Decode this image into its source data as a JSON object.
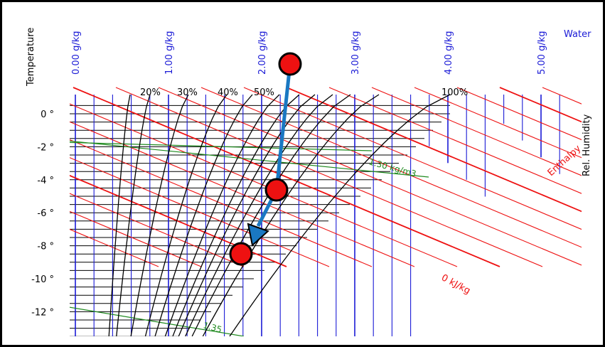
{
  "labels": {
    "temperature": "Temperature",
    "water": "Water",
    "rel_humidity": "Rel. Humidity",
    "enthalpy": "Enthalpy",
    "enthalpy_value": "0 kJ/kg",
    "density_1": "1.30 kg/m3",
    "density_2": "1.35"
  },
  "colors": {
    "temperature_lines": "#000000",
    "water_lines": "#1a1ad6",
    "enthalpy_lines": "#ee1111",
    "density_lines": "#1f8a1f",
    "rh_curves": "#000000",
    "process_arrow": "#1a78c2",
    "markers": "#ee1111"
  },
  "chart_data": {
    "type": "psychrometric",
    "y_axis": {
      "title": "Temperature",
      "ticks": [
        "0 °",
        "-2 °",
        "-4 °",
        "-6 °",
        "-8 °",
        "-10 °",
        "-12 °"
      ],
      "tick_values": [
        0,
        -2,
        -4,
        -6,
        -8,
        -10,
        -12
      ],
      "unit": "°C"
    },
    "x_axis": {
      "title": "Water",
      "ticks": [
        "0.00 g/kg",
        "1.00 g/kg",
        "2.00 g/kg",
        "3.00 g/kg",
        "4.00 g/kg",
        "5.00 g/kg"
      ],
      "tick_values": [
        0,
        1,
        2,
        3,
        4,
        5
      ],
      "unit": "g/kg"
    },
    "rh_curves": {
      "title": "Rel. Humidity",
      "labels": [
        "20%",
        "30%",
        "40%",
        "50%",
        "100%"
      ]
    },
    "enthalpy": {
      "title": "Enthalpy",
      "label": "0 kJ/kg",
      "value": 0
    },
    "density_lines": [
      {
        "label": "1.30 kg/m3",
        "value": 1.3
      },
      {
        "label": "1.35",
        "value": 1.35
      }
    ],
    "process_points": [
      {
        "water_g_kg": 2.2,
        "temperature_c": 3.0
      },
      {
        "water_g_kg": 2.05,
        "temperature_c": -4.5
      },
      {
        "water_g_kg": 1.75,
        "temperature_c": -8.5
      }
    ]
  }
}
